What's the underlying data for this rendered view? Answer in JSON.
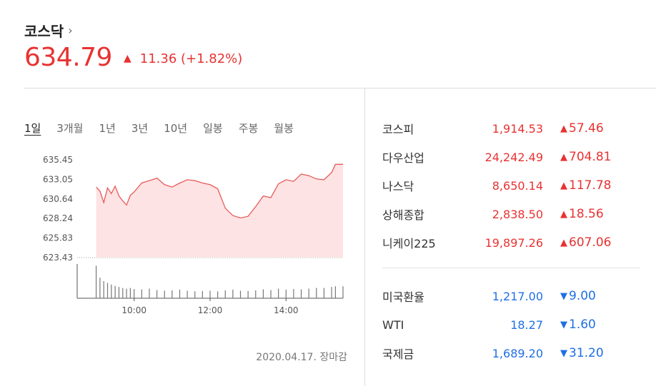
{
  "header": {
    "title": "코스닥",
    "chevron": "›",
    "price": "634.79",
    "change": "11.36 (+1.82%)"
  },
  "tabs": [
    {
      "label": "1일",
      "active": true
    },
    {
      "label": "3개월"
    },
    {
      "label": "1년"
    },
    {
      "label": "3년"
    },
    {
      "label": "10년"
    },
    {
      "label": "일봉"
    },
    {
      "label": "주봉"
    },
    {
      "label": "월봉"
    }
  ],
  "chart_data": {
    "type": "area",
    "ylim": [
      623.43,
      635.45
    ],
    "ytick_labels": [
      "635.45",
      "633.05",
      "630.64",
      "628.24",
      "625.83",
      "623.43"
    ],
    "xtick_labels": [
      "10:00",
      "12:00",
      "14:00"
    ],
    "x_hours": [
      9.0,
      9.1,
      9.2,
      9.3,
      9.4,
      9.5,
      9.6,
      9.7,
      9.8,
      9.9,
      10.0,
      10.2,
      10.4,
      10.6,
      10.8,
      11.0,
      11.2,
      11.4,
      11.6,
      11.8,
      12.0,
      12.2,
      12.4,
      12.6,
      12.8,
      13.0,
      13.2,
      13.4,
      13.6,
      13.8,
      14.0,
      14.2,
      14.4,
      14.6,
      14.8,
      15.0,
      15.2,
      15.3,
      15.5
    ],
    "values": [
      632.1,
      631.6,
      630.2,
      632.0,
      631.3,
      632.2,
      631.0,
      630.4,
      629.9,
      631.1,
      631.5,
      632.6,
      632.9,
      633.2,
      632.4,
      632.1,
      632.6,
      633.0,
      632.9,
      632.6,
      632.4,
      631.9,
      629.5,
      628.6,
      628.3,
      628.5,
      629.7,
      631.0,
      630.8,
      632.5,
      633.0,
      632.8,
      633.7,
      633.5,
      633.1,
      633.0,
      633.9,
      634.9,
      634.9
    ],
    "volume": [
      0.95,
      0.6,
      0.5,
      0.45,
      0.4,
      0.36,
      0.33,
      0.3,
      0.28,
      0.3,
      0.27,
      0.26,
      0.28,
      0.24,
      0.22,
      0.23,
      0.25,
      0.22,
      0.2,
      0.21,
      0.22,
      0.2,
      0.23,
      0.25,
      0.22,
      0.21,
      0.23,
      0.26,
      0.24,
      0.28,
      0.25,
      0.27,
      0.26,
      0.28,
      0.3,
      0.3,
      0.33,
      0.35,
      0.35
    ],
    "area_color": "#fde3e3",
    "line_color": "#e85a5a",
    "grid": false
  },
  "footnote": "2020.04.17. 장마감",
  "indices_group1": [
    {
      "name": "코스피",
      "value": "1,914.53",
      "change": "57.46",
      "dir": "up"
    },
    {
      "name": "다우산업",
      "value": "24,242.49",
      "change": "704.81",
      "dir": "up"
    },
    {
      "name": "나스닥",
      "value": "8,650.14",
      "change": "117.78",
      "dir": "up"
    },
    {
      "name": "상해종합",
      "value": "2,838.50",
      "change": "18.56",
      "dir": "up"
    },
    {
      "name": "니케이225",
      "value": "19,897.26",
      "change": "607.06",
      "dir": "up"
    }
  ],
  "indices_group2": [
    {
      "name": "미국환율",
      "value": "1,217.00",
      "change": "9.00",
      "dir": "down"
    },
    {
      "name": "WTI",
      "value": "18.27",
      "change": "1.60",
      "dir": "down"
    },
    {
      "name": "국제금",
      "value": "1,689.20",
      "change": "31.20",
      "dir": "down"
    }
  ],
  "colors": {
    "up": "#e83232",
    "down": "#1f6fe5"
  },
  "icons": {
    "up": "▲",
    "down": "▼"
  }
}
